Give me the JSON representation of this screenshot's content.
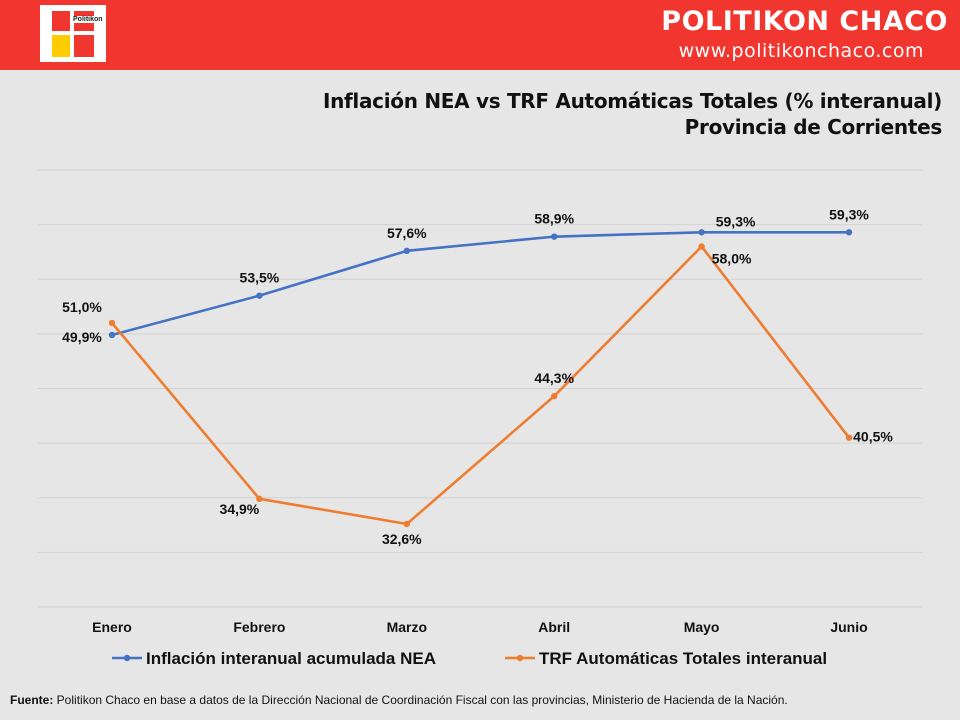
{
  "header": {
    "logo_text": "Politikon",
    "brand": "POLITIKON CHACO",
    "website": "www.politikonchaco.com",
    "background_color": "#f0362e"
  },
  "title_line1": "Inflación NEA vs TRF Automáticas Totales (% interanual)",
  "title_line2": "Provincia de Corrientes",
  "chart_data": {
    "type": "line",
    "categories": [
      "Enero",
      "Febrero",
      "Marzo",
      "Abril",
      "Mayo",
      "Junio"
    ],
    "ylim": [
      25,
      65
    ],
    "grid": true,
    "legend_position": "bottom",
    "series": [
      {
        "name": "Inflación interanual acumulada NEA",
        "color": "#4472c4",
        "values": [
          49.9,
          53.5,
          57.6,
          58.9,
          59.3,
          59.3
        ],
        "labels": [
          "49,9%",
          "53,5%",
          "57,6%",
          "58,9%",
          "59,3%",
          "59,3%"
        ]
      },
      {
        "name": "TRF Automáticas Totales interanual",
        "color": "#ed7d31",
        "values": [
          51.0,
          34.9,
          32.6,
          44.3,
          58.0,
          40.5
        ],
        "labels": [
          "51,0%",
          "34,9%",
          "32,6%",
          "44,3%",
          "58,0%",
          "40,5%"
        ]
      }
    ]
  },
  "source": {
    "label": "Fuente:",
    "text": " Politikon Chaco en base a datos de la Dirección Nacional de Coordinación Fiscal con las provincias, Ministerio de Hacienda de la Nación."
  }
}
